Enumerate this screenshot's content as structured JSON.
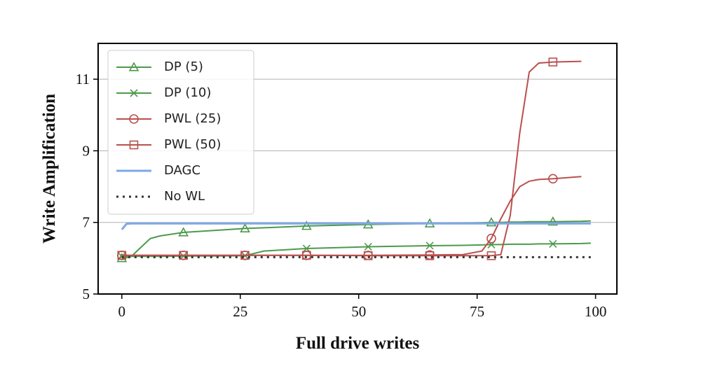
{
  "chart_data": {
    "type": "line",
    "x_label": "Full drive writes",
    "y_label": "Write Amplification",
    "x": [
      0,
      1,
      2,
      4,
      6,
      8,
      13,
      20,
      26,
      30,
      39,
      52,
      65,
      72,
      76,
      78,
      80,
      82,
      84,
      86,
      88,
      91,
      97,
      99
    ],
    "series": [
      {
        "name": "DP (5)",
        "color": "#4c9a4c",
        "marker": "triangle",
        "values": [
          6.0,
          6.02,
          6.05,
          6.3,
          6.55,
          6.62,
          6.72,
          6.78,
          6.83,
          6.85,
          6.9,
          6.94,
          6.97,
          6.98,
          6.99,
          7.0,
          7.0,
          7.01,
          7.01,
          7.02,
          7.02,
          7.02,
          7.03,
          7.04
        ]
      },
      {
        "name": "DP (10)",
        "color": "#4c9a4c",
        "marker": "x",
        "values": [
          6.05,
          6.05,
          6.05,
          6.05,
          6.05,
          6.05,
          6.06,
          6.06,
          6.07,
          6.2,
          6.27,
          6.32,
          6.35,
          6.36,
          6.37,
          6.38,
          6.38,
          6.39,
          6.39,
          6.39,
          6.4,
          6.4,
          6.41,
          6.42
        ]
      },
      {
        "name": "PWL (25)",
        "color": "#b9504e",
        "marker": "circle",
        "values": [
          6.08,
          6.08,
          6.08,
          6.08,
          6.08,
          6.08,
          6.08,
          6.08,
          6.08,
          6.08,
          6.08,
          6.08,
          6.09,
          6.1,
          6.2,
          6.55,
          7.1,
          7.6,
          8.0,
          8.15,
          8.2,
          8.22,
          8.28,
          null
        ]
      },
      {
        "name": "PWL (50)",
        "color": "#b9504e",
        "marker": "square",
        "values": [
          6.08,
          6.08,
          6.08,
          6.08,
          6.08,
          6.08,
          6.08,
          6.08,
          6.08,
          6.08,
          6.08,
          6.07,
          6.07,
          6.07,
          6.07,
          6.07,
          6.1,
          7.2,
          9.5,
          11.2,
          11.45,
          11.48,
          11.5,
          null
        ]
      },
      {
        "name": "DAGC",
        "color": "#7ea7e8",
        "marker": null,
        "values": [
          6.8,
          6.96,
          6.97,
          6.97,
          6.97,
          6.97,
          6.97,
          6.97,
          6.97,
          6.97,
          6.97,
          6.97,
          6.97,
          6.97,
          6.97,
          6.97,
          6.97,
          6.97,
          6.97,
          6.97,
          6.97,
          6.97,
          6.97,
          6.97
        ]
      },
      {
        "name": "No WL",
        "color": "#333333",
        "marker": null,
        "dash": "dotted",
        "values": [
          6.03,
          6.03,
          6.03,
          6.03,
          6.03,
          6.03,
          6.03,
          6.03,
          6.03,
          6.03,
          6.03,
          6.03,
          6.03,
          6.03,
          6.03,
          6.03,
          6.03,
          6.03,
          6.03,
          6.03,
          6.03,
          6.03,
          6.03,
          6.03
        ]
      }
    ],
    "xlim": [
      -5,
      104.5
    ],
    "ylim": [
      5,
      12
    ],
    "xticks": [
      0,
      25,
      50,
      75,
      100
    ],
    "yticks": [
      5,
      7,
      9,
      11
    ],
    "grid": "y",
    "legend": "upper left"
  }
}
